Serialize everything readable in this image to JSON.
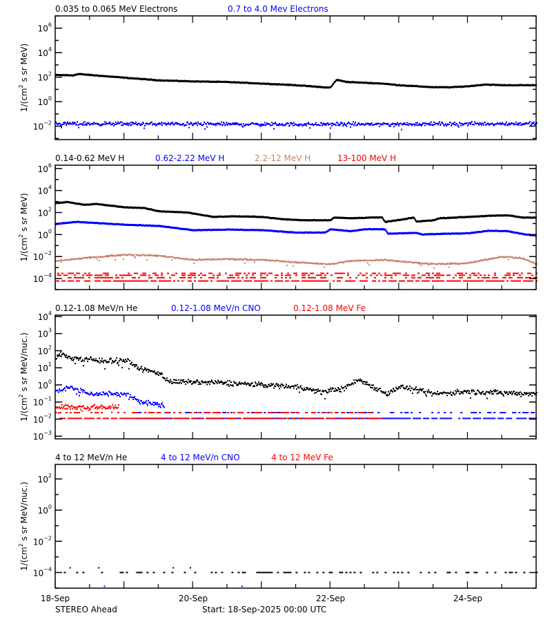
{
  "chart_data": {
    "type": "scatter",
    "y_scale": "log",
    "x_axis": {
      "range": [
        "2025-09-18T00:00",
        "2025-09-25T00:00"
      ],
      "tick_labels": [
        {
          "t": "2025-09-18T00:00",
          "label": "18-Sep"
        },
        {
          "t": "2025-09-20T00:00",
          "label": "20-Sep"
        },
        {
          "t": "2025-09-22T00:00",
          "label": "22-Sep"
        },
        {
          "t": "2025-09-24T00:00",
          "label": "24-Sep"
        }
      ]
    },
    "footer": {
      "left": "STEREO Ahead",
      "center": "Start: 18-Sep-2025 00:00 UTC"
    },
    "panels": [
      {
        "ylabel": {
          "pre": "1/(cm",
          "sup": "2",
          "post": " s sr MeV)"
        },
        "ylim": [
          0.0008,
          10000000
        ],
        "label_exponents": [
          -2,
          0,
          2,
          4,
          6
        ],
        "grid": false,
        "series": [
          {
            "name": "0.035 to 0.065 MeV Electrons",
            "color": "#000000",
            "marker": "line",
            "points": [
              [
                "2025-09-18T00:00",
                150
              ],
              [
                "2025-09-18T06:00",
                140
              ],
              [
                "2025-09-18T08:00",
                180
              ],
              [
                "2025-09-18T12:00",
                150
              ],
              [
                "2025-09-19T00:00",
                90
              ],
              [
                "2025-09-19T12:00",
                55
              ],
              [
                "2025-09-20T00:00",
                45
              ],
              [
                "2025-09-20T12:00",
                40
              ],
              [
                "2025-09-21T00:00",
                30
              ],
              [
                "2025-09-21T12:00",
                22
              ],
              [
                "2025-09-21T23:00",
                14
              ],
              [
                "2025-09-22T00:00",
                15
              ],
              [
                "2025-09-22T02:00",
                60
              ],
              [
                "2025-09-22T06:00",
                40
              ],
              [
                "2025-09-22T18:00",
                30
              ],
              [
                "2025-09-23T00:00",
                22
              ],
              [
                "2025-09-23T12:00",
                15
              ],
              [
                "2025-09-23T18:00",
                15
              ],
              [
                "2025-09-24T00:00",
                18
              ],
              [
                "2025-09-24T06:00",
                25
              ],
              [
                "2025-09-24T12:00",
                22
              ],
              [
                "2025-09-25T00:00",
                22
              ]
            ]
          },
          {
            "name": "0.7 to 4.0 Mev Electrons",
            "color": "#0000ff",
            "marker": "scatter",
            "points": [
              [
                "2025-09-18T00:00",
                0.016
              ],
              [
                "2025-09-21T12:00",
                0.014
              ],
              [
                "2025-09-25T00:00",
                0.016
              ]
            ]
          }
        ]
      },
      {
        "ylabel": {
          "pre": "1/(cm",
          "sup": "2",
          "post": " s sr MeV)"
        },
        "ylim": [
          1e-05,
          2000000
        ],
        "label_exponents": [
          -4,
          -2,
          0,
          2,
          4,
          6
        ],
        "grid": false,
        "series": [
          {
            "name": "0.14-0.62 MeV H",
            "color": "#000000",
            "marker": "line",
            "points": [
              [
                "2025-09-18T00:00",
                700
              ],
              [
                "2025-09-18T04:00",
                900
              ],
              [
                "2025-09-18T10:00",
                500
              ],
              [
                "2025-09-18T14:00",
                600
              ],
              [
                "2025-09-19T00:00",
                300
              ],
              [
                "2025-09-19T07:00",
                250
              ],
              [
                "2025-09-19T12:00",
                130
              ],
              [
                "2025-09-19T22:00",
                100
              ],
              [
                "2025-09-20T07:00",
                40
              ],
              [
                "2025-09-20T14:00",
                45
              ],
              [
                "2025-09-21T00:00",
                40
              ],
              [
                "2025-09-21T07:00",
                25
              ],
              [
                "2025-09-21T14:00",
                20
              ],
              [
                "2025-09-22T00:00",
                20
              ],
              [
                "2025-09-22T01:00",
                35
              ],
              [
                "2025-09-22T07:00",
                30
              ],
              [
                "2025-09-22T14:00",
                35
              ],
              [
                "2025-09-22T18:00",
                35
              ],
              [
                "2025-09-22T19:00",
                14
              ],
              [
                "2025-09-23T02:00",
                25
              ],
              [
                "2025-09-23T05:00",
                35
              ],
              [
                "2025-09-23T06:00",
                15
              ],
              [
                "2025-09-23T12:00",
                20
              ],
              [
                "2025-09-23T14:00",
                30
              ],
              [
                "2025-09-24T00:00",
                40
              ],
              [
                "2025-09-24T07:00",
                50
              ],
              [
                "2025-09-24T14:00",
                55
              ],
              [
                "2025-09-24T19:00",
                35
              ],
              [
                "2025-09-25T00:00",
                35
              ]
            ]
          },
          {
            "name": "0.62-2.22 MeV H",
            "color": "#0000ff",
            "marker": "line",
            "points": [
              [
                "2025-09-18T00:00",
                9
              ],
              [
                "2025-09-18T07:00",
                14
              ],
              [
                "2025-09-19T00:00",
                8
              ],
              [
                "2025-09-19T12:00",
                6
              ],
              [
                "2025-09-20T00:00",
                2.5
              ],
              [
                "2025-09-20T12:00",
                2.8
              ],
              [
                "2025-09-21T00:00",
                2.5
              ],
              [
                "2025-09-21T12:00",
                1.5
              ],
              [
                "2025-09-21T22:00",
                1.5
              ],
              [
                "2025-09-22T00:00",
                3
              ],
              [
                "2025-09-22T07:00",
                2
              ],
              [
                "2025-09-22T12:00",
                3
              ],
              [
                "2025-09-22T19:00",
                3
              ],
              [
                "2025-09-22T20:00",
                1.2
              ],
              [
                "2025-09-23T06:00",
                1.4
              ],
              [
                "2025-09-23T08:00",
                1
              ],
              [
                "2025-09-23T12:00",
                1.1
              ],
              [
                "2025-09-24T00:00",
                1.3
              ],
              [
                "2025-09-24T07:00",
                2.2
              ],
              [
                "2025-09-24T14:00",
                2
              ],
              [
                "2025-09-24T20:00",
                1
              ],
              [
                "2025-09-25T00:00",
                0.8
              ]
            ]
          },
          {
            "name": "2.2-12 MeV H",
            "color": "#c8826a",
            "marker": "band",
            "points": [
              [
                "2025-09-18T00:00",
                0.004
              ],
              [
                "2025-09-18T12:00",
                0.008
              ],
              [
                "2025-09-19T00:00",
                0.015
              ],
              [
                "2025-09-19T12:00",
                0.012
              ],
              [
                "2025-09-20T00:00",
                0.005
              ],
              [
                "2025-09-20T12:00",
                0.006
              ],
              [
                "2025-09-21T00:00",
                0.005
              ],
              [
                "2025-09-21T12:00",
                0.003
              ],
              [
                "2025-09-22T00:00",
                0.002
              ],
              [
                "2025-09-22T07:00",
                0.004
              ],
              [
                "2025-09-22T19:00",
                0.005
              ],
              [
                "2025-09-23T12:00",
                0.002
              ],
              [
                "2025-09-24T00:00",
                0.0025
              ],
              [
                "2025-09-24T12:00",
                0.01
              ],
              [
                "2025-09-24T19:00",
                0.007
              ],
              [
                "2025-09-25T00:00",
                0.002
              ]
            ]
          },
          {
            "name": "13-100 MeV H",
            "color": "#ff0000",
            "marker": "levels",
            "levels": [
              6e-05,
              0.00012,
              0.0002,
              0.0003
            ],
            "range": [
              "2025-09-18T00:00",
              "2025-09-25T00:00"
            ]
          }
        ]
      },
      {
        "ylabel": {
          "pre": "1/(cm",
          "sup": "2",
          "post": " s sr MeV/nuc.)"
        },
        "ylim": [
          0.0007,
          12000
        ],
        "label_exponents": [
          -3,
          -2,
          -1,
          0,
          1,
          2,
          3,
          4
        ],
        "grid": false,
        "series": [
          {
            "name": "0.12-1.08 MeV/n He",
            "color": "#000000",
            "marker": "scatter",
            "points": [
              [
                "2025-09-18T00:00",
                35
              ],
              [
                "2025-09-18T02:00",
                70
              ],
              [
                "2025-09-18T06:00",
                35
              ],
              [
                "2025-09-18T18:00",
                25
              ],
              [
                "2025-09-19T00:00",
                30
              ],
              [
                "2025-09-19T06:00",
                8
              ],
              [
                "2025-09-19T12:00",
                5
              ],
              [
                "2025-09-19T16:00",
                1.5
              ],
              [
                "2025-09-20T12:00",
                1.3
              ],
              [
                "2025-09-21T00:00",
                1
              ],
              [
                "2025-09-21T12:00",
                0.8
              ],
              [
                "2025-09-21T20:00",
                0.4
              ],
              [
                "2025-09-22T04:00",
                0.6
              ],
              [
                "2025-09-22T10:00",
                2
              ],
              [
                "2025-09-22T14:00",
                0.9
              ],
              [
                "2025-09-22T20:00",
                0.3
              ],
              [
                "2025-09-23T00:00",
                0.8
              ],
              [
                "2025-09-23T12:00",
                0.3
              ],
              [
                "2025-09-24T00:00",
                0.4
              ],
              [
                "2025-09-25T00:00",
                0.3
              ]
            ]
          },
          {
            "name": "0.12-1.08 MeV/n CNO",
            "color": "#0000ff",
            "marker": "scatter",
            "points": [
              [
                "2025-09-18T00:00",
                0.4
              ],
              [
                "2025-09-18T04:00",
                0.8
              ],
              [
                "2025-09-18T12:00",
                0.3
              ],
              [
                "2025-09-19T00:00",
                0.3
              ],
              [
                "2025-09-19T06:00",
                0.1
              ],
              [
                "2025-09-19T14:00",
                0.06
              ]
            ],
            "levels": [
              0.011,
              0.024
            ],
            "range": [
              "2025-09-19T04:00",
              "2025-09-25T00:00"
            ]
          },
          {
            "name": "0.12-1.08 MeV Fe",
            "color": "#ff0000",
            "marker": "scatter",
            "points": [
              [
                "2025-09-18T00:00",
                0.05
              ],
              [
                "2025-09-18T22:00",
                0.05
              ]
            ],
            "levels": [
              0.011,
              0.024
            ],
            "range": [
              "2025-09-18T00:00",
              "2025-09-22T18:00"
            ]
          }
        ]
      },
      {
        "ylabel": {
          "pre": "1/(cm",
          "sup": "2",
          "post": " s sr MeV/nuc.)"
        },
        "ylim": [
          1e-05,
          850
        ],
        "label_exponents": [
          -4,
          -2,
          0,
          2
        ],
        "grid": false,
        "series": [
          {
            "name": "4 to 12 MeV/n He",
            "color": "#000000",
            "marker": "levels",
            "levels": [
              0.0001
            ],
            "range": [
              "2025-09-18T03:00",
              "2025-09-25T00:00"
            ],
            "extra_points": [
              [
                "2025-09-18T15:00",
                0.0002
              ],
              [
                "2025-09-19T17:00",
                0.0002
              ],
              [
                "2025-09-19T23:00",
                0.0002
              ],
              [
                "2025-09-18T05:00",
                0.0002
              ]
            ]
          },
          {
            "name": "4 to 12 MeV/n CNO",
            "color": "#0000ff",
            "marker": "points",
            "extra_points": [
              [
                "2025-09-18T17:00",
                1.3e-05
              ],
              [
                "2025-09-20T17:00",
                1.3e-05
              ]
            ]
          },
          {
            "name": "4 to 12 MeV Fe",
            "color": "#ff0000",
            "marker": "points",
            "extra_points": []
          }
        ]
      }
    ]
  }
}
